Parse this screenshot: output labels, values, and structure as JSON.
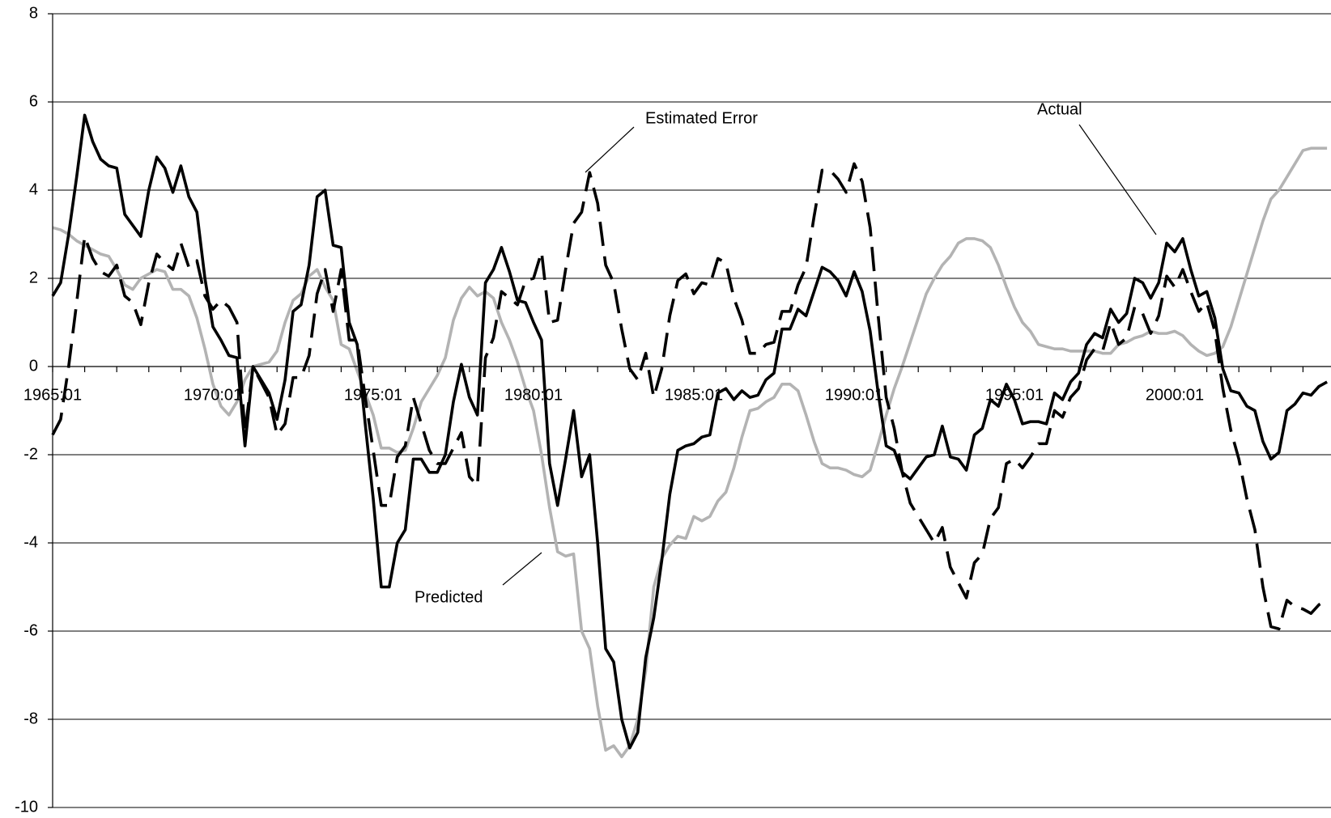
{
  "chart_data": {
    "type": "line",
    "categories": [
      "1965:01",
      null,
      null,
      null,
      null,
      null,
      null,
      null,
      null,
      null,
      null,
      null,
      null,
      null,
      null,
      null,
      null,
      null,
      null,
      null,
      "1970:01",
      null,
      null,
      null,
      null,
      null,
      null,
      null,
      null,
      null,
      null,
      null,
      null,
      null,
      null,
      null,
      null,
      null,
      null,
      null,
      "1975:01",
      null,
      null,
      null,
      null,
      null,
      null,
      null,
      null,
      null,
      null,
      null,
      null,
      null,
      null,
      null,
      null,
      null,
      null,
      null,
      "1980:01",
      null,
      null,
      null,
      null,
      null,
      null,
      null,
      null,
      null,
      null,
      null,
      null,
      null,
      null,
      null,
      null,
      null,
      null,
      null,
      "1985:01",
      null,
      null,
      null,
      null,
      null,
      null,
      null,
      null,
      null,
      null,
      null,
      null,
      null,
      null,
      null,
      null,
      null,
      null,
      null,
      "1990:01",
      null,
      null,
      null,
      null,
      null,
      null,
      null,
      null,
      null,
      null,
      null,
      null,
      null,
      null,
      null,
      null,
      null,
      null,
      null,
      "1995:01",
      null,
      null,
      null,
      null,
      null,
      null,
      null,
      null,
      null,
      null,
      null,
      null,
      null,
      null,
      null,
      null,
      null,
      null,
      null,
      "2000:01",
      null,
      null,
      null,
      null,
      null,
      null,
      null,
      null,
      null,
      null,
      null,
      null,
      null,
      null,
      null,
      null,
      null,
      null,
      null
    ],
    "series": [
      {
        "name": "Actual",
        "color": "#000000",
        "line_style": "solid",
        "values": [
          1.6,
          1.9,
          3.0,
          4.3,
          5.7,
          5.1,
          4.7,
          4.55,
          4.5,
          3.45,
          3.2,
          2.95,
          4.0,
          4.75,
          4.5,
          3.95,
          4.55,
          3.85,
          3.5,
          2.0,
          0.9,
          0.6,
          0.25,
          0.2,
          -1.8,
          0.0,
          -0.3,
          -0.6,
          -1.2,
          -0.3,
          1.25,
          1.4,
          2.3,
          3.85,
          4.0,
          2.75,
          2.7,
          1.0,
          0.5,
          -1.3,
          -3.0,
          -5.0,
          -5.0,
          -4.0,
          -3.7,
          -2.1,
          -2.1,
          -2.4,
          -2.4,
          -2.0,
          -0.8,
          0.05,
          -0.7,
          -1.1,
          1.9,
          2.2,
          2.7,
          2.15,
          1.5,
          1.45,
          1.0,
          0.6,
          -2.2,
          -3.15,
          -2.1,
          -1.0,
          -2.5,
          -2.0,
          -4.0,
          -6.4,
          -6.7,
          -8.0,
          -8.65,
          -8.3,
          -6.6,
          -5.7,
          -4.4,
          -2.9,
          -1.9,
          -1.8,
          -1.75,
          -1.6,
          -1.55,
          -0.6,
          -0.5,
          -0.75,
          -0.55,
          -0.7,
          -0.65,
          -0.3,
          -0.15,
          0.85,
          0.85,
          1.3,
          1.15,
          1.7,
          2.25,
          2.15,
          1.95,
          1.6,
          2.15,
          1.7,
          0.8,
          -0.6,
          -1.8,
          -1.9,
          -2.4,
          -2.55,
          -2.3,
          -2.05,
          -2.0,
          -1.35,
          -2.05,
          -2.1,
          -2.35,
          -1.55,
          -1.4,
          -0.75,
          -0.9,
          -0.4,
          -0.75,
          -1.3,
          -1.25,
          -1.25,
          -1.3,
          -0.6,
          -0.75,
          -0.35,
          -0.15,
          0.5,
          0.75,
          0.65,
          1.3,
          1.0,
          1.2,
          2.0,
          1.9,
          1.55,
          1.9,
          2.8,
          2.6,
          2.9,
          2.2,
          1.6,
          1.7,
          1.1,
          -0.05,
          -0.55,
          -0.6,
          -0.9,
          -1.0,
          -1.7,
          -2.1,
          -1.95,
          -1.0,
          -0.85,
          -0.6,
          -0.65,
          -0.45,
          -0.35
        ]
      },
      {
        "name": "Predicted",
        "color": "#b3b3b3",
        "line_style": "solid",
        "values": [
          3.15,
          3.1,
          3.0,
          2.85,
          2.75,
          2.65,
          2.55,
          2.5,
          2.2,
          1.85,
          1.75,
          2.0,
          2.1,
          2.2,
          2.15,
          1.75,
          1.75,
          1.6,
          1.1,
          0.4,
          -0.4,
          -0.9,
          -1.1,
          -0.8,
          -0.3,
          0.0,
          0.05,
          0.1,
          0.35,
          1.0,
          1.5,
          1.65,
          2.05,
          2.2,
          1.8,
          1.5,
          0.5,
          0.4,
          -0.1,
          -0.6,
          -1.1,
          -1.85,
          -1.85,
          -1.95,
          -1.9,
          -1.4,
          -0.8,
          -0.5,
          -0.2,
          0.2,
          1.05,
          1.55,
          1.8,
          1.6,
          1.7,
          1.55,
          1.0,
          0.6,
          0.1,
          -0.5,
          -1.0,
          -2.0,
          -3.2,
          -4.2,
          -4.3,
          -4.25,
          -6.0,
          -6.4,
          -7.7,
          -8.7,
          -8.6,
          -8.85,
          -8.6,
          -8.0,
          -6.9,
          -5.0,
          -4.35,
          -4.05,
          -3.85,
          -3.9,
          -3.4,
          -3.5,
          -3.4,
          -3.05,
          -2.85,
          -2.3,
          -1.6,
          -1.0,
          -0.95,
          -0.8,
          -0.7,
          -0.4,
          -0.4,
          -0.55,
          -1.1,
          -1.7,
          -2.2,
          -2.3,
          -2.3,
          -2.35,
          -2.45,
          -2.5,
          -2.35,
          -1.75,
          -1.1,
          -0.5,
          0.0,
          0.55,
          1.1,
          1.65,
          2.0,
          2.3,
          2.5,
          2.8,
          2.9,
          2.9,
          2.85,
          2.7,
          2.3,
          1.8,
          1.35,
          1.0,
          0.8,
          0.5,
          0.45,
          0.4,
          0.4,
          0.35,
          0.35,
          0.35,
          0.35,
          0.3,
          0.3,
          0.5,
          0.55,
          0.65,
          0.7,
          0.8,
          0.75,
          0.75,
          0.8,
          0.7,
          0.5,
          0.35,
          0.25,
          0.3,
          0.45,
          0.9,
          1.5,
          2.1,
          2.7,
          3.3,
          3.8,
          4.0,
          4.3,
          4.6,
          4.9,
          4.95,
          4.95,
          4.95
        ]
      },
      {
        "name": "Estimated Error",
        "color": "#000000",
        "line_style": "dashed",
        "values": [
          -1.55,
          -1.2,
          0,
          1.45,
          2.95,
          2.45,
          2.15,
          2.05,
          2.3,
          1.6,
          1.45,
          0.95,
          1.9,
          2.55,
          2.35,
          2.2,
          2.8,
          2.25,
          2.4,
          1.6,
          1.3,
          1.5,
          1.35,
          1.0,
          -1.5,
          0,
          -0.35,
          -0.7,
          -1.55,
          -1.3,
          -0.25,
          -0.25,
          0.25,
          1.65,
          2.2,
          1.25,
          2.2,
          0.6,
          0.6,
          -0.7,
          -1.9,
          -3.15,
          -3.15,
          -2.05,
          -1.8,
          -0.7,
          -1.3,
          -1.9,
          -2.2,
          -2.2,
          -1.85,
          -1.5,
          -2.5,
          -2.7,
          0.2,
          0.65,
          1.7,
          1.55,
          1.4,
          1.95,
          2.0,
          2.6,
          1.0,
          1.05,
          2.2,
          3.25,
          3.5,
          4.4,
          3.7,
          2.3,
          1.9,
          0.85,
          -0.05,
          -0.3,
          0.3,
          -0.7,
          -0.05,
          1.15,
          1.95,
          2.1,
          1.65,
          1.9,
          1.85,
          2.45,
          2.35,
          1.55,
          1.05,
          0.3,
          0.3,
          0.5,
          0.55,
          1.25,
          1.25,
          1.85,
          2.25,
          3.4,
          4.45,
          4.45,
          4.25,
          3.95,
          4.6,
          4.2,
          3.15,
          1.15,
          -0.7,
          -1.4,
          -2.4,
          -3.1,
          -3.4,
          -3.7,
          -4.0,
          -3.65,
          -4.55,
          -4.9,
          -5.25,
          -4.45,
          -4.25,
          -3.45,
          -3.2,
          -2.2,
          -2.1,
          -2.3,
          -2.05,
          -1.75,
          -1.75,
          -1.0,
          -1.15,
          -0.7,
          -0.5,
          0.15,
          0.4,
          0.35,
          1.0,
          0.5,
          0.65,
          1.35,
          1.2,
          0.75,
          1.15,
          2.05,
          1.8,
          2.2,
          1.7,
          1.25,
          1.45,
          0.8,
          -0.5,
          -1.45,
          -2.1,
          -3.0,
          -3.7,
          -5.0,
          -5.9,
          -5.95,
          -5.3,
          -5.45,
          -5.5,
          -5.6,
          -5.4,
          -5.3
        ]
      }
    ],
    "ylim": [
      -10,
      8
    ],
    "yticks": [
      -10,
      -8,
      -6,
      -4,
      -2,
      0,
      2,
      4,
      6,
      8
    ],
    "grid": true
  }
}
